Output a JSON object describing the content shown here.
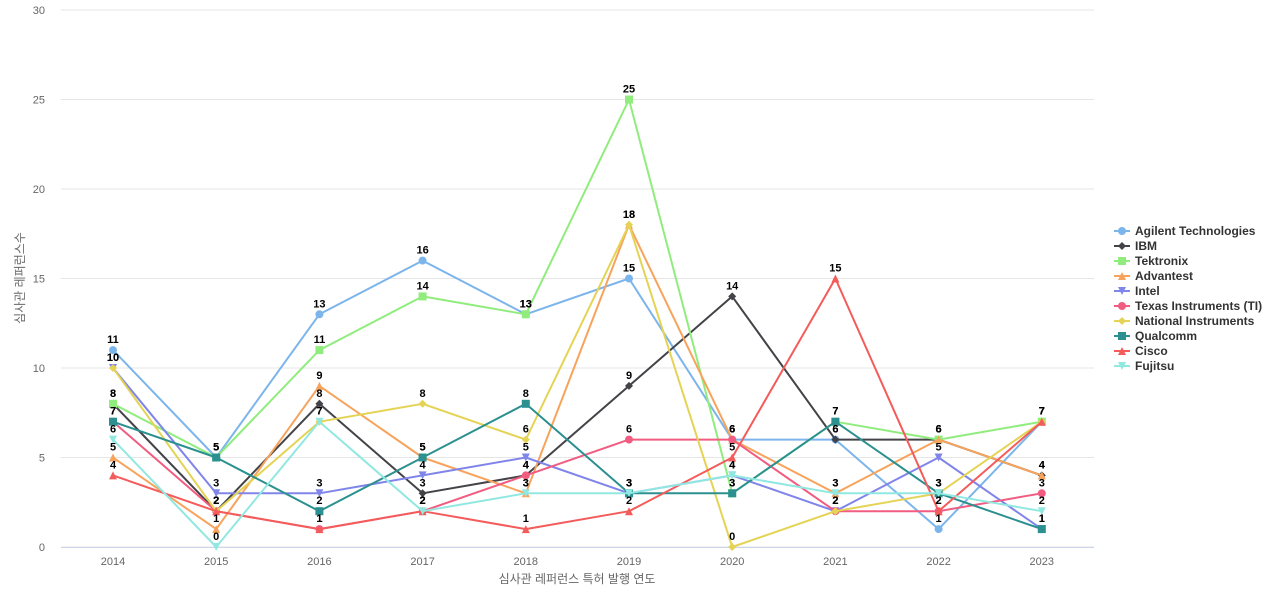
{
  "chart_data": {
    "type": "line",
    "title": "",
    "xlabel": "심사관 레퍼런스 특허 발행 연도",
    "ylabel": "심사관 레퍼런스수",
    "ylim": [
      0,
      30
    ],
    "yticks": [
      0,
      5,
      10,
      15,
      20,
      25,
      30
    ],
    "grid": true,
    "legend_position": "right",
    "data_labels": true,
    "categories": [
      "2014",
      "2015",
      "2016",
      "2017",
      "2018",
      "2019",
      "2020",
      "2021",
      "2022",
      "2023"
    ],
    "series": [
      {
        "name": "Agilent Technologies",
        "color": "#7cb5ec",
        "marker": "circle",
        "values": [
          11,
          5,
          13,
          16,
          13,
          15,
          6,
          6,
          1,
          7
        ]
      },
      {
        "name": "IBM",
        "color": "#434348",
        "marker": "diamond",
        "values": [
          8,
          2,
          8,
          3,
          4,
          9,
          14,
          6,
          6,
          4
        ]
      },
      {
        "name": "Tektronix",
        "color": "#90ed7d",
        "marker": "square",
        "values": [
          8,
          5,
          11,
          14,
          13,
          25,
          3,
          7,
          6,
          7
        ]
      },
      {
        "name": "Advantest",
        "color": "#f7a35c",
        "marker": "triangle",
        "values": [
          5,
          1,
          9,
          5,
          3,
          18,
          6,
          3,
          6,
          4
        ]
      },
      {
        "name": "Intel",
        "color": "#8085e9",
        "marker": "triangle-down",
        "values": [
          10,
          3,
          3,
          4,
          5,
          3,
          4,
          2,
          5,
          1
        ]
      },
      {
        "name": "Texas Instruments (TI)",
        "color": "#f15c80",
        "marker": "circle",
        "values": [
          7,
          2,
          1,
          2,
          4,
          6,
          6,
          2,
          2,
          3
        ]
      },
      {
        "name": "National Instruments",
        "color": "#e4d354",
        "marker": "diamond",
        "values": [
          10,
          2,
          7,
          8,
          6,
          18,
          0,
          2,
          3,
          7
        ]
      },
      {
        "name": "Qualcomm",
        "color": "#2b908f",
        "marker": "square",
        "values": [
          7,
          5,
          2,
          5,
          8,
          3,
          3,
          7,
          3,
          1
        ]
      },
      {
        "name": "Cisco",
        "color": "#f45b5b",
        "marker": "triangle",
        "values": [
          4,
          2,
          1,
          2,
          1,
          2,
          5,
          15,
          2,
          7
        ]
      },
      {
        "name": "Fujitsu",
        "color": "#91e8e1",
        "marker": "triangle-down",
        "values": [
          6,
          0,
          7,
          2,
          3,
          3,
          4,
          3,
          3,
          2
        ]
      }
    ]
  }
}
